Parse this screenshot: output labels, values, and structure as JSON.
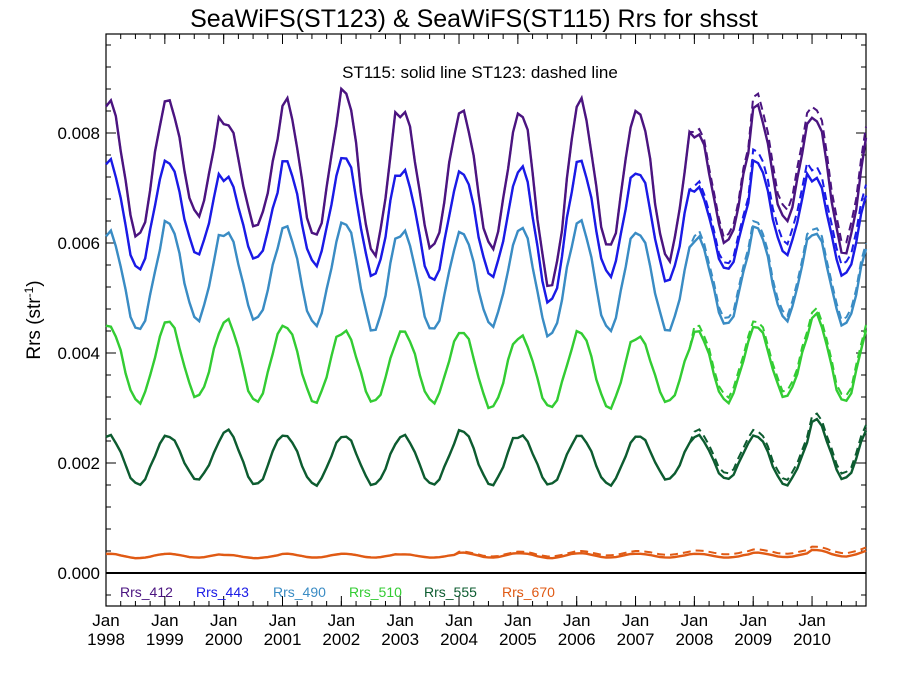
{
  "chart_data": {
    "type": "line",
    "title": "SeaWiFS(ST123) & SeaWiFS(ST115)  Rrs for shsst",
    "annotation": "ST115: solid line   ST123: dashed line",
    "xlabel": "",
    "ylabel": "Rrs (str",
    "ylabel_sup": "-1",
    "ylabel_close": ")",
    "xlim": [
      1998.0,
      2010.917
    ],
    "ylim": [
      -0.0006,
      0.0098
    ],
    "x_ticks": [
      {
        "month": "Jan",
        "year": "1998",
        "x": 1998
      },
      {
        "month": "Jan",
        "year": "1999",
        "x": 1999
      },
      {
        "month": "Jan",
        "year": "2000",
        "x": 2000
      },
      {
        "month": "Jan",
        "year": "2001",
        "x": 2001
      },
      {
        "month": "Jan",
        "year": "2002",
        "x": 2002
      },
      {
        "month": "Jan",
        "year": "2003",
        "x": 2003
      },
      {
        "month": "Jan",
        "year": "2004",
        "x": 2004
      },
      {
        "month": "Jan",
        "year": "2005",
        "x": 2005
      },
      {
        "month": "Jan",
        "year": "2006",
        "x": 2006
      },
      {
        "month": "Jan",
        "year": "2007",
        "x": 2007
      },
      {
        "month": "Jan",
        "year": "2008",
        "x": 2008
      },
      {
        "month": "Jan",
        "year": "2009",
        "x": 2009
      },
      {
        "month": "Jan",
        "year": "2010",
        "x": 2010
      }
    ],
    "y_ticks": [
      {
        "label": "0.000",
        "value": 0.0
      },
      {
        "label": "0.002",
        "value": 0.002
      },
      {
        "label": "0.004",
        "value": 0.004
      },
      {
        "label": "0.006",
        "value": 0.006
      },
      {
        "label": "0.008",
        "value": 0.008
      }
    ],
    "zero_line": true,
    "grid": false,
    "legend_position": "bottom-left",
    "line_styles": {
      "ST115": "solid",
      "ST123": "dashed"
    },
    "series": [
      {
        "name": "Rrs_412",
        "color": "#4b1480",
        "peaks": [
          0.0086,
          0.0086,
          0.0082,
          0.0086,
          0.0088,
          0.0084,
          0.0084,
          0.0084,
          0.0086,
          0.0084,
          0.008,
          0.0085,
          0.0083
        ],
        "troughs": [
          0.0061,
          0.0065,
          0.0063,
          0.0061,
          0.0058,
          0.0059,
          0.0059,
          0.0052,
          0.0059,
          0.0057,
          0.006,
          0.0064,
          0.0058
        ],
        "st123_offset": [
          0,
          0,
          0,
          0,
          0,
          0,
          0,
          0,
          0,
          0,
          0.0001,
          0.0002,
          0.0002
        ]
      },
      {
        "name": "Rrs_443",
        "color": "#1a1ae6",
        "peaks": [
          0.0075,
          0.0075,
          0.0072,
          0.0075,
          0.0076,
          0.0073,
          0.0073,
          0.0074,
          0.0075,
          0.0073,
          0.007,
          0.0075,
          0.0072
        ],
        "troughs": [
          0.0055,
          0.0058,
          0.0057,
          0.0056,
          0.0054,
          0.0053,
          0.0054,
          0.0049,
          0.0054,
          0.0053,
          0.0055,
          0.0058,
          0.0054
        ],
        "st123_offset": [
          0,
          0,
          0,
          0,
          0,
          0,
          0,
          0,
          0,
          0,
          0.0001,
          0.0002,
          0.0002
        ]
      },
      {
        "name": "Rrs_490",
        "color": "#3a8cc4",
        "peaks": [
          0.0062,
          0.0064,
          0.0062,
          0.0063,
          0.0064,
          0.0062,
          0.0062,
          0.0063,
          0.0064,
          0.0062,
          0.0061,
          0.0063,
          0.0062
        ],
        "troughs": [
          0.0044,
          0.0046,
          0.0046,
          0.0045,
          0.0044,
          0.0044,
          0.0045,
          0.0043,
          0.0044,
          0.0044,
          0.0045,
          0.0046,
          0.0045
        ],
        "st123_offset": [
          0,
          0,
          0,
          0,
          0,
          0,
          0,
          0,
          0,
          0,
          0.0001,
          0.0001,
          0.0001
        ]
      },
      {
        "name": "Rrs_510",
        "color": "#33cc33",
        "peaks": [
          0.0045,
          0.0046,
          0.0046,
          0.0045,
          0.0044,
          0.0044,
          0.0044,
          0.0043,
          0.0044,
          0.0043,
          0.0044,
          0.0045,
          0.0047
        ],
        "troughs": [
          0.0031,
          0.0032,
          0.0031,
          0.0031,
          0.0031,
          0.0031,
          0.003,
          0.003,
          0.003,
          0.0031,
          0.0031,
          0.0032,
          0.0031
        ],
        "st123_offset": [
          0,
          0,
          0,
          0,
          0,
          0,
          0,
          0,
          0,
          0,
          0.0001,
          0.0001,
          0.0001
        ]
      },
      {
        "name": "Rrs_555",
        "color": "#0d5c30",
        "peaks": [
          0.0025,
          0.0025,
          0.0026,
          0.0025,
          0.0025,
          0.0025,
          0.0026,
          0.0025,
          0.0025,
          0.0025,
          0.0025,
          0.0025,
          0.0028
        ],
        "troughs": [
          0.0016,
          0.0017,
          0.0016,
          0.0016,
          0.0016,
          0.0016,
          0.0016,
          0.0016,
          0.0016,
          0.0017,
          0.0017,
          0.0016,
          0.0017
        ],
        "st123_offset": [
          0,
          0,
          0,
          0,
          0,
          0,
          0,
          0,
          0,
          0,
          0.0001,
          0.0001,
          0.0001
        ]
      },
      {
        "name": "Rrs_670",
        "color": "#e05a14",
        "peaks": [
          0.00035,
          0.00035,
          0.00033,
          0.00035,
          0.00035,
          0.00034,
          0.00037,
          0.00036,
          0.00036,
          0.00035,
          0.00035,
          0.00037,
          0.00042
        ],
        "troughs": [
          0.00027,
          0.00028,
          0.00027,
          0.00028,
          0.00028,
          0.00028,
          0.00028,
          0.00027,
          0.00028,
          0.00028,
          0.00028,
          0.00029,
          0.0003
        ],
        "st123_offset": [
          0,
          0,
          0,
          0,
          0,
          0,
          2e-05,
          3e-05,
          4e-05,
          5e-05,
          6e-05,
          6e-05,
          6e-05
        ]
      }
    ]
  }
}
